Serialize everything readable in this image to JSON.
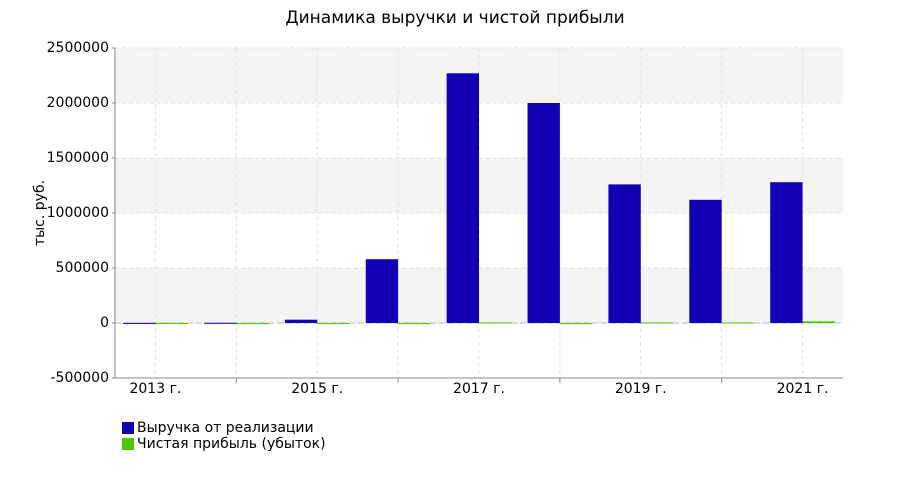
{
  "chart_data": {
    "type": "bar",
    "title": "Динамика выручки и чистой прибыли",
    "y_label": "тыс. руб.",
    "categories": [
      "2013 г.",
      null,
      "2015 г.",
      null,
      "2017 г.",
      null,
      "2019 г.",
      null,
      "2021 г."
    ],
    "series": [
      {
        "name": "Выручка от реализации",
        "color": "#1100b3",
        "values": [
          1000,
          2000,
          30000,
          580000,
          2270000,
          2000000,
          1260000,
          1120000,
          1280000
        ]
      },
      {
        "name": "Чистая прибыль (убыток)",
        "color": "#4fc400",
        "values": [
          -5000,
          -10000,
          -10000,
          -10000,
          5000,
          -10000,
          5000,
          5000,
          15000
        ]
      }
    ],
    "ylim": [
      -500000,
      2500000
    ],
    "yticks": [
      -500000,
      0,
      500000,
      1000000,
      1500000,
      2000000,
      2500000
    ],
    "grid": true
  }
}
